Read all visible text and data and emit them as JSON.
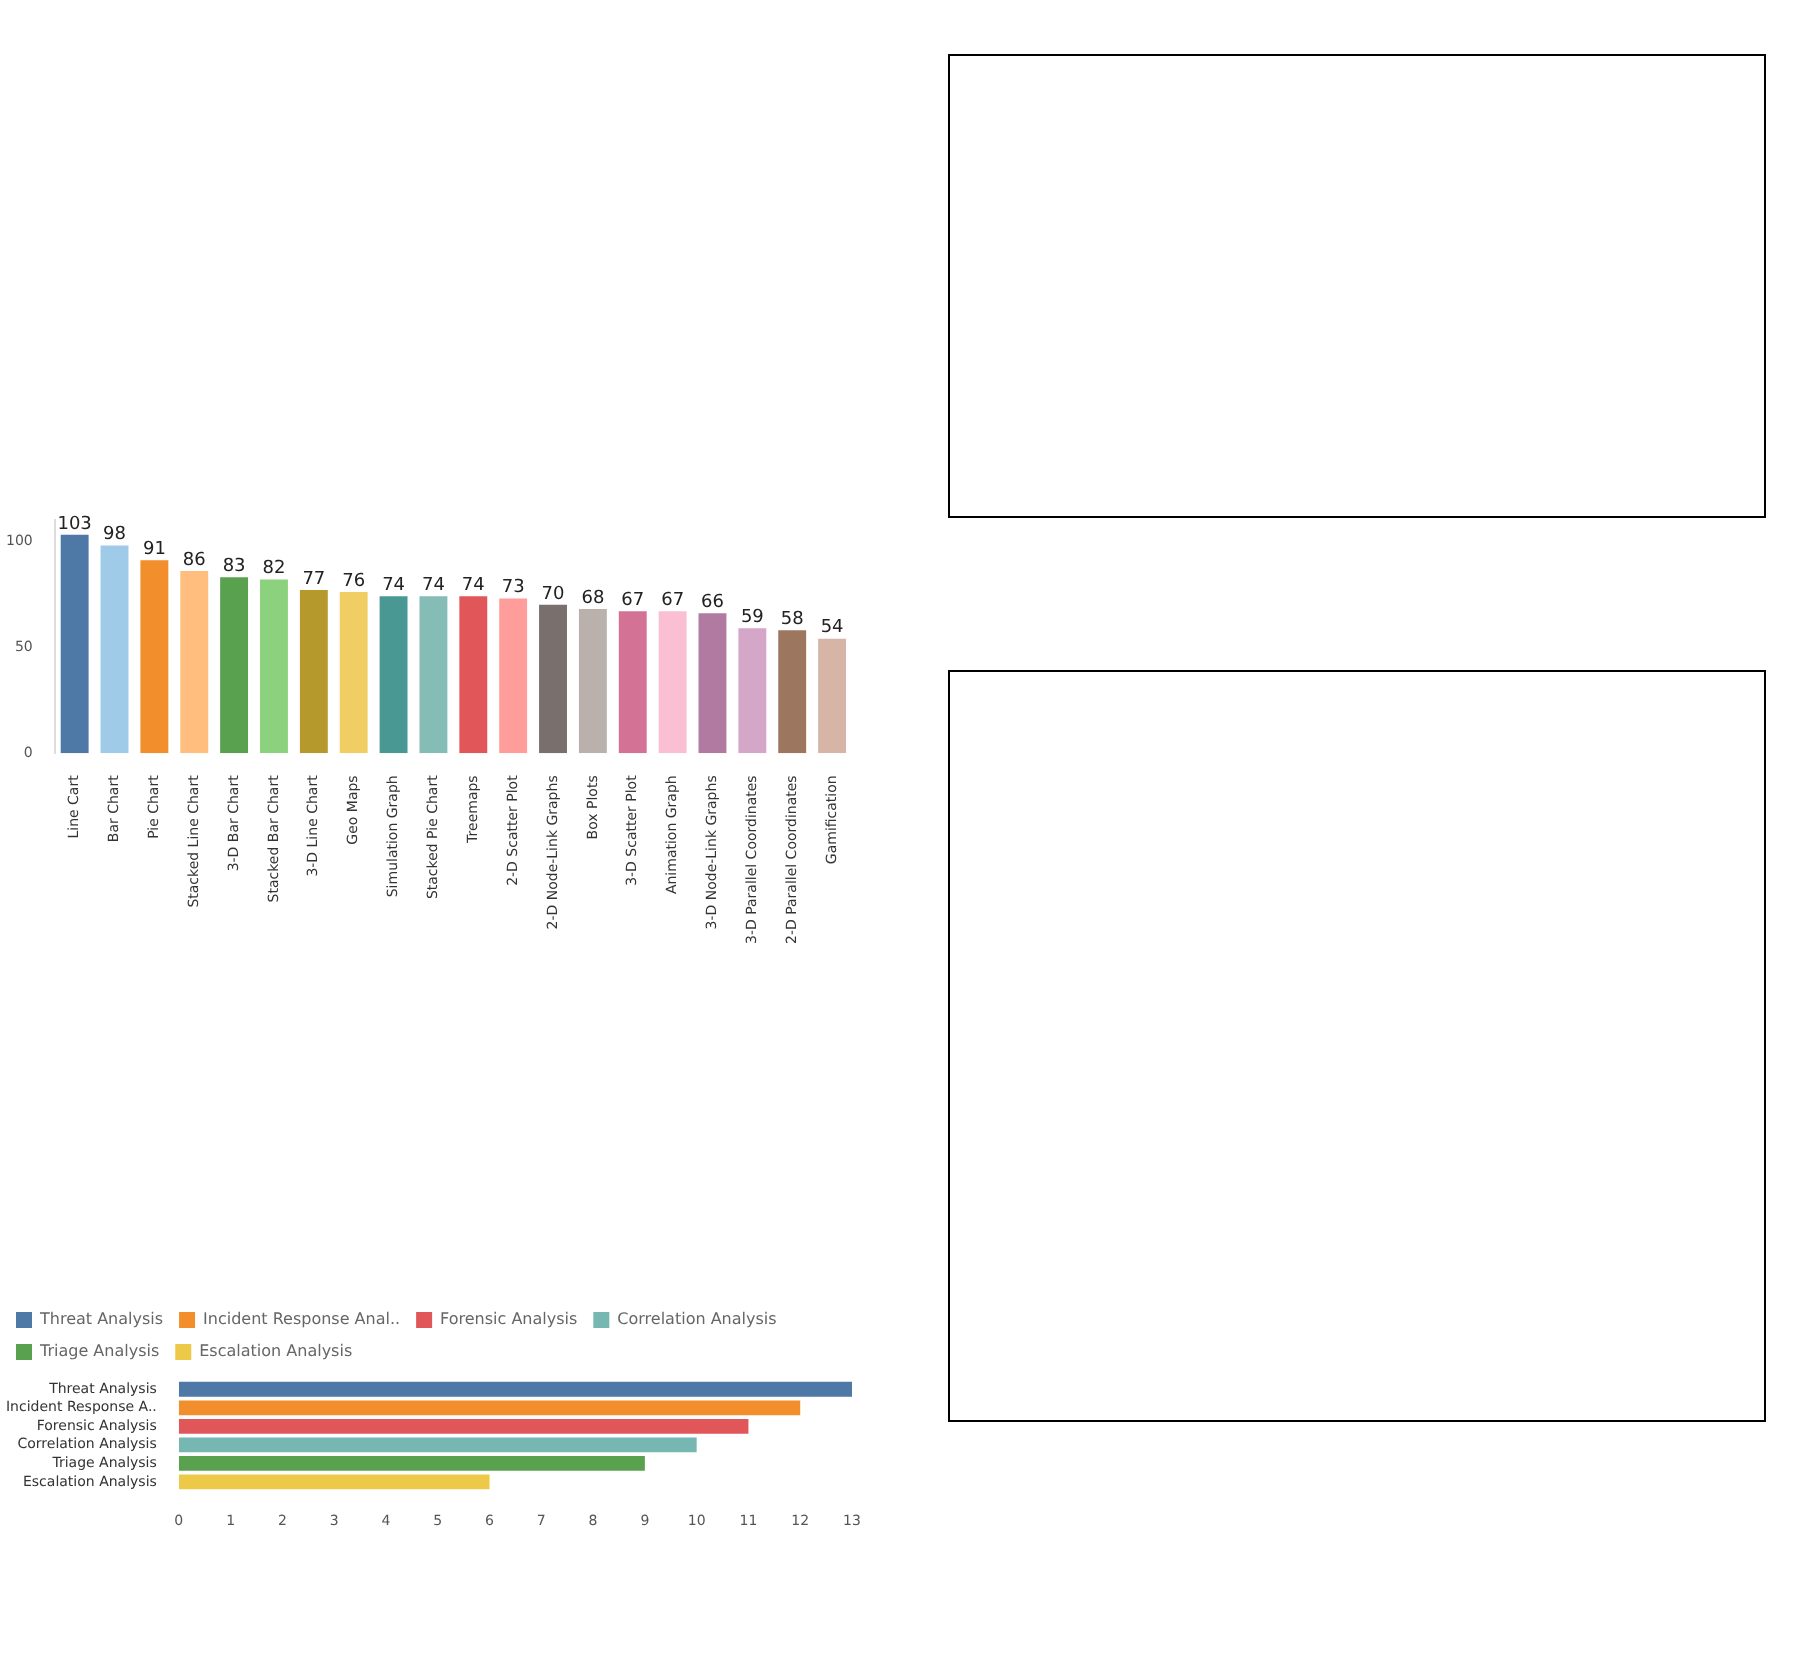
{
  "chart_data": [
    {
      "type": "bar",
      "categories": [
        "Line Cart",
        "Bar Chart",
        "Pie Chart",
        "Stacked Line Chart",
        "3-D Bar Chart",
        "Stacked Bar Chart",
        "3-D Line Chart",
        "Geo Maps",
        "Simulation Graph",
        "Stacked Pie Chart",
        "Treemaps",
        "2-D Scatter Plot",
        "2-D Node-Link Graphs",
        "Box Plots",
        "3-D Scatter Plot",
        "Animation Graph",
        "3-D Node-Link Graphs",
        "3-D Parallel Coordinates",
        "2-D Parallel Coordinates",
        "Gamification"
      ],
      "values": [
        103,
        98,
        91,
        86,
        83,
        82,
        77,
        76,
        74,
        74,
        74,
        73,
        70,
        68,
        67,
        67,
        66,
        59,
        58,
        54
      ],
      "colors": [
        "#4e79a7",
        "#a0cbe8",
        "#f28e2b",
        "#ffbe7d",
        "#59a14f",
        "#8cd17d",
        "#b6992d",
        "#f1ce63",
        "#499894",
        "#86bcb6",
        "#e15759",
        "#ff9d9a",
        "#79706e",
        "#bab0ac",
        "#d37295",
        "#fabfd2",
        "#b07aa1",
        "#d4a6c8",
        "#9d7660",
        "#d7b5a6"
      ],
      "ylim": [
        0,
        110
      ],
      "yticks": [
        0,
        50,
        100
      ],
      "grid": false,
      "legend": false,
      "data_labels": true
    },
    {
      "type": "bar",
      "orientation": "horizontal",
      "stacked": true,
      "categories": [
        "Threat Analysis",
        "Incident Response A..",
        "Forensic Analysis",
        "Correlation Analysis",
        "Triage Analysis",
        "Escalation Analysis"
      ],
      "series": [
        {
          "name": "Threat Analysis",
          "color": "#4e79a7",
          "values": [
            13,
            null,
            null,
            null,
            null,
            null
          ]
        },
        {
          "name": "Incident Response Anal..",
          "color": "#f28e2b",
          "values": [
            null,
            12,
            null,
            null,
            null,
            null
          ]
        },
        {
          "name": "Forensic Analysis",
          "color": "#e15759",
          "values": [
            null,
            null,
            11,
            null,
            null,
            null
          ]
        },
        {
          "name": "Correlation Analysis",
          "color": "#76b7b2",
          "values": [
            null,
            null,
            null,
            10,
            null,
            null
          ]
        },
        {
          "name": "Triage Analysis",
          "color": "#59a14f",
          "values": [
            null,
            null,
            null,
            null,
            9,
            null
          ]
        },
        {
          "name": "Escalation Analysis",
          "color": "#edc948",
          "values": [
            null,
            null,
            null,
            null,
            null,
            6
          ]
        }
      ],
      "xlim": [
        0,
        13
      ],
      "xticks": [
        0,
        1,
        2,
        3,
        4,
        5,
        6,
        7,
        8,
        9,
        10,
        11,
        12,
        13
      ],
      "grid": false,
      "legend": "top left"
    }
  ]
}
